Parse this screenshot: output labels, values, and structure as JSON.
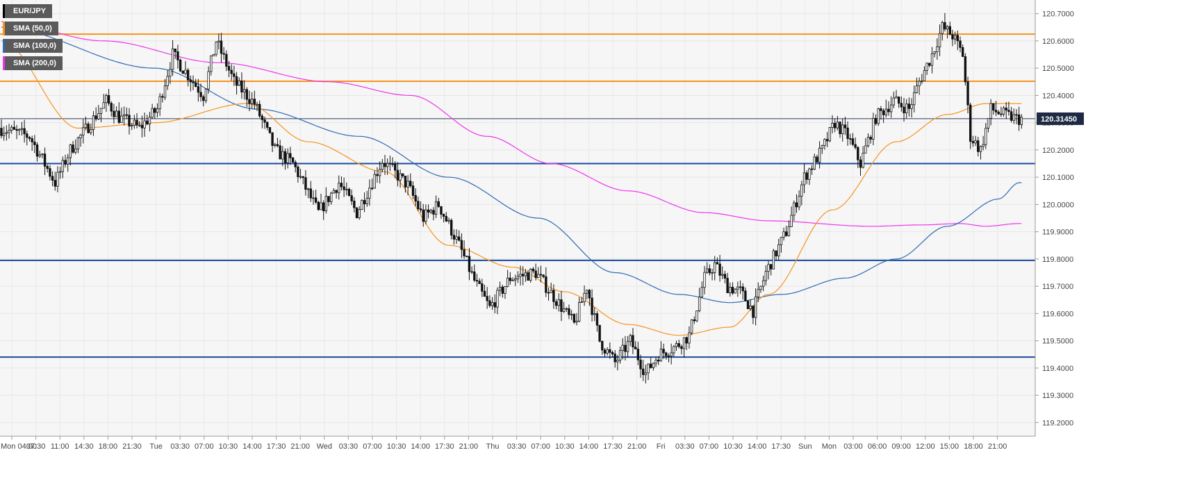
{
  "symbol": "EUR/JPY",
  "last_price_label": "120.31450",
  "indicators": [
    {
      "label": "SMA (50,0)",
      "color": "#f7931e"
    },
    {
      "label": "SMA (100,0)",
      "color": "#2e6bb3"
    },
    {
      "label": "SMA (200,0)",
      "color": "#ee33ee"
    }
  ],
  "chart_data": {
    "type": "candlestick",
    "ylim": [
      119.15,
      120.75
    ],
    "y_ticks": [
      "120.7000",
      "120.6000",
      "120.5000",
      "120.4000",
      "120.3000",
      "120.2000",
      "120.1000",
      "120.0000",
      "119.9000",
      "119.8000",
      "119.7000",
      "119.6000",
      "119.5000",
      "119.4000",
      "119.3000",
      "119.2000"
    ],
    "x_ticks": [
      "Mon 04:00",
      "07:30",
      "11:00",
      "14:30",
      "18:00",
      "21:30",
      "Tue",
      "03:30",
      "07:00",
      "10:30",
      "14:00",
      "17:30",
      "21:00",
      "Wed",
      "03:30",
      "07:00",
      "10:30",
      "14:00",
      "17:30",
      "21:00",
      "Thu",
      "03:30",
      "07:00",
      "10:30",
      "14:00",
      "17:30",
      "21:00",
      "Fri",
      "03:30",
      "07:00",
      "10:30",
      "14:00",
      "17:30",
      "Sun",
      "Mon",
      "03:00",
      "06:00",
      "09:00",
      "12:00",
      "15:00",
      "18:00",
      "21:00"
    ],
    "horizontal_levels": [
      {
        "value": 120.625,
        "color": "#f7931e"
      },
      {
        "value": 120.452,
        "color": "#f7931e"
      },
      {
        "value": 120.15,
        "color": "#1a4a9c"
      },
      {
        "value": 119.795,
        "color": "#1a4a9c"
      },
      {
        "value": 119.44,
        "color": "#1a4a9c"
      }
    ],
    "last_price": 120.3145,
    "path_anchors": [
      [
        0,
        120.28
      ],
      [
        12,
        120.25
      ],
      [
        22,
        120.08
      ],
      [
        28,
        120.2
      ],
      [
        36,
        120.3
      ],
      [
        42,
        120.38
      ],
      [
        47,
        120.32
      ],
      [
        55,
        120.28
      ],
      [
        62,
        120.35
      ],
      [
        68,
        120.55
      ],
      [
        80,
        120.4
      ],
      [
        85,
        120.6
      ],
      [
        92,
        120.45
      ],
      [
        100,
        120.37
      ],
      [
        108,
        120.2
      ],
      [
        115,
        120.15
      ],
      [
        125,
        119.97
      ],
      [
        133,
        120.08
      ],
      [
        140,
        119.97
      ],
      [
        150,
        120.16
      ],
      [
        160,
        120.07
      ],
      [
        166,
        119.95
      ],
      [
        172,
        120.0
      ],
      [
        180,
        119.85
      ],
      [
        186,
        119.72
      ],
      [
        192,
        119.62
      ],
      [
        200,
        119.73
      ],
      [
        210,
        119.75
      ],
      [
        218,
        119.65
      ],
      [
        225,
        119.56
      ],
      [
        230,
        119.7
      ],
      [
        235,
        119.5
      ],
      [
        241,
        119.42
      ],
      [
        247,
        119.5
      ],
      [
        253,
        119.38
      ],
      [
        258,
        119.45
      ],
      [
        265,
        119.48
      ],
      [
        270,
        119.52
      ],
      [
        276,
        119.73
      ],
      [
        280,
        119.78
      ],
      [
        285,
        119.7
      ],
      [
        290,
        119.68
      ],
      [
        295,
        119.61
      ],
      [
        300,
        119.75
      ],
      [
        308,
        119.9
      ],
      [
        315,
        120.1
      ],
      [
        322,
        120.2
      ],
      [
        327,
        120.3
      ],
      [
        332,
        120.25
      ],
      [
        337,
        120.15
      ],
      [
        343,
        120.32
      ],
      [
        350,
        120.38
      ],
      [
        356,
        120.35
      ],
      [
        360,
        120.45
      ],
      [
        365,
        120.55
      ],
      [
        369,
        120.65
      ],
      [
        373,
        120.62
      ],
      [
        377,
        120.55
      ],
      [
        380,
        120.25
      ],
      [
        384,
        120.2
      ],
      [
        388,
        120.35
      ],
      [
        393,
        120.33
      ],
      [
        398,
        120.3145
      ]
    ],
    "sma_50": [
      [
        0,
        120.6
      ],
      [
        30,
        120.28
      ],
      [
        60,
        120.3
      ],
      [
        96,
        120.37
      ],
      [
        120,
        120.23
      ],
      [
        150,
        120.12
      ],
      [
        175,
        119.85
      ],
      [
        200,
        119.77
      ],
      [
        220,
        119.68
      ],
      [
        245,
        119.56
      ],
      [
        265,
        119.52
      ],
      [
        285,
        119.55
      ],
      [
        300,
        119.67
      ],
      [
        325,
        119.98
      ],
      [
        350,
        120.23
      ],
      [
        370,
        120.33
      ],
      [
        385,
        120.37
      ],
      [
        398,
        120.37
      ]
    ],
    "sma_100": [
      [
        0,
        120.65
      ],
      [
        60,
        120.5
      ],
      [
        100,
        120.35
      ],
      [
        140,
        120.25
      ],
      [
        175,
        120.1
      ],
      [
        210,
        119.95
      ],
      [
        240,
        119.75
      ],
      [
        265,
        119.67
      ],
      [
        285,
        119.64
      ],
      [
        305,
        119.67
      ],
      [
        330,
        119.73
      ],
      [
        350,
        119.8
      ],
      [
        370,
        119.92
      ],
      [
        390,
        120.02
      ],
      [
        398,
        120.08
      ]
    ],
    "sma_200": [
      [
        0,
        120.67
      ],
      [
        40,
        120.6
      ],
      [
        85,
        120.52
      ],
      [
        128,
        120.45
      ],
      [
        160,
        120.4
      ],
      [
        190,
        120.25
      ],
      [
        215,
        120.15
      ],
      [
        245,
        120.05
      ],
      [
        275,
        119.97
      ],
      [
        300,
        119.94
      ],
      [
        340,
        119.92
      ],
      [
        360,
        119.925
      ],
      [
        375,
        119.93
      ],
      [
        385,
        119.92
      ],
      [
        398,
        119.93
      ]
    ]
  }
}
